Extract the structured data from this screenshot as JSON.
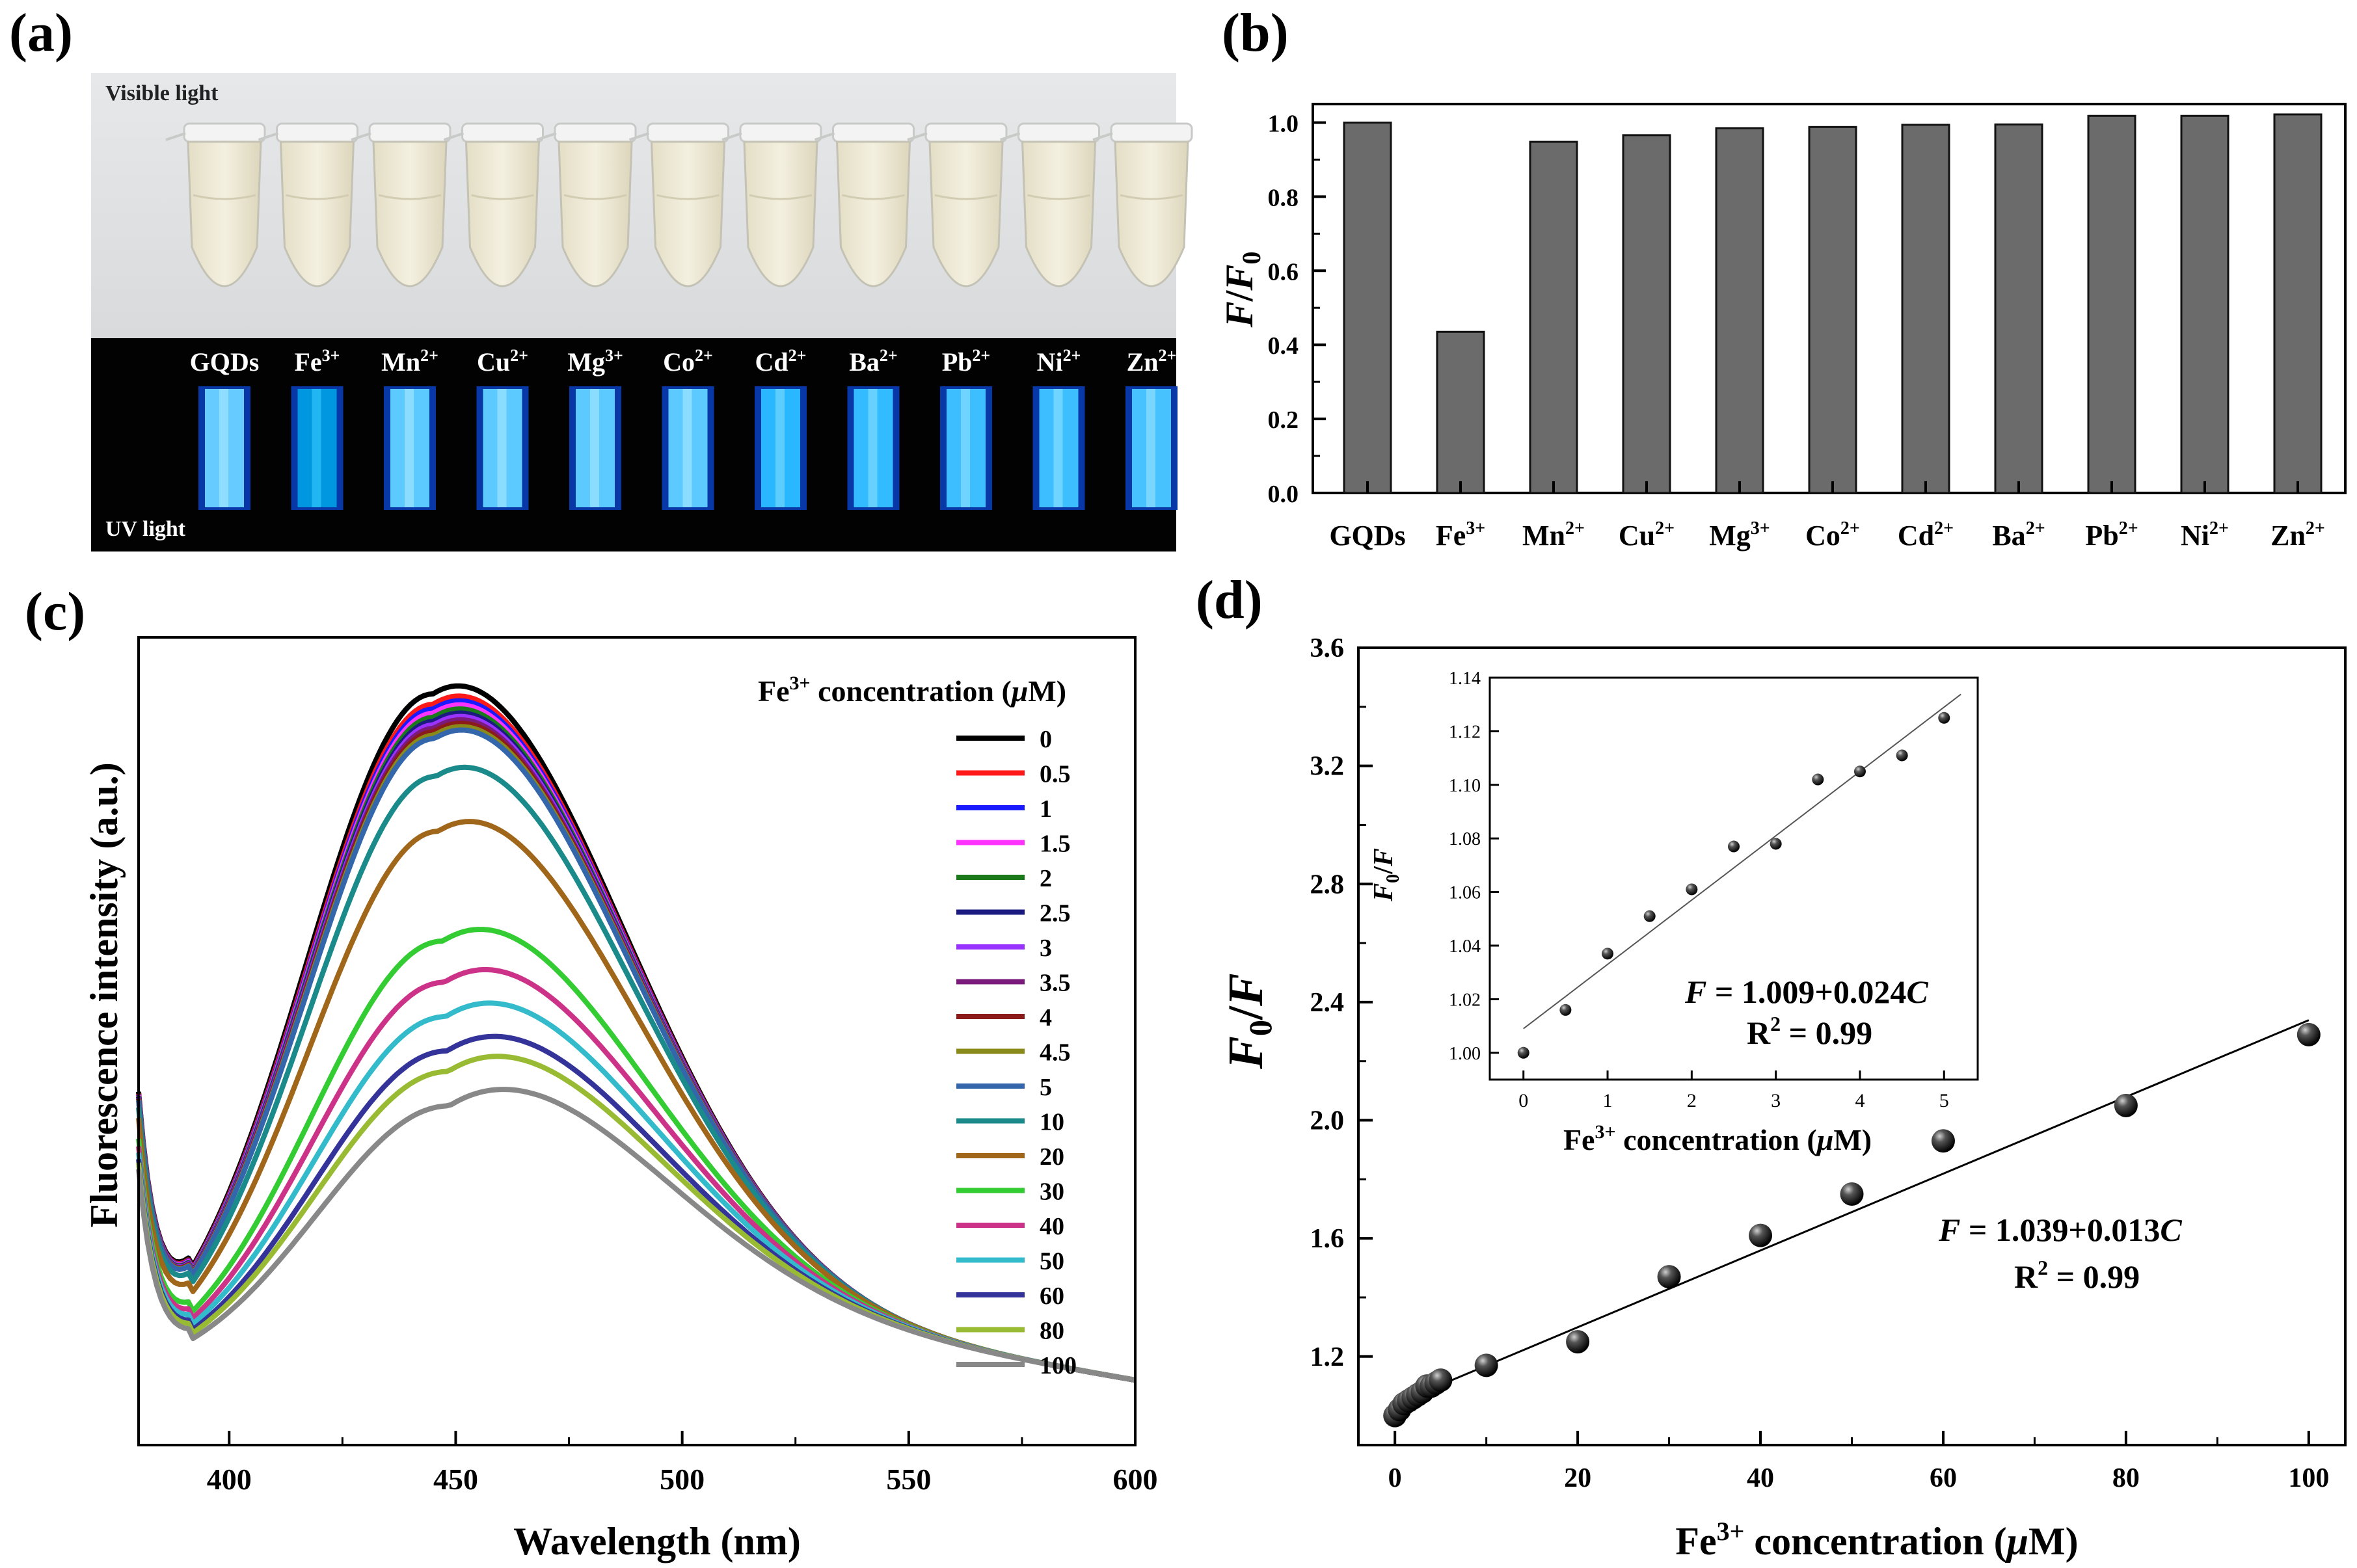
{
  "panel_labels": {
    "a": "(a)",
    "b": "(b)",
    "c": "(c)",
    "d": "(d)"
  },
  "photo": {
    "visible_label": "Visible light",
    "uv_label": "UV light",
    "tube_labels": [
      {
        "base": "GQDs",
        "sup": ""
      },
      {
        "base": "Fe",
        "sup": "3+"
      },
      {
        "base": "Mn",
        "sup": "2+"
      },
      {
        "base": "Cu",
        "sup": "2+"
      },
      {
        "base": "Mg",
        "sup": "3+"
      },
      {
        "base": "Co",
        "sup": "2+"
      },
      {
        "base": "Cd",
        "sup": "2+"
      },
      {
        "base": "Ba",
        "sup": "2+"
      },
      {
        "base": "Pb",
        "sup": "2+"
      },
      {
        "base": "Ni",
        "sup": "2+"
      },
      {
        "base": "Zn",
        "sup": "2+"
      }
    ],
    "uv_brightness": [
      1.0,
      0.35,
      0.95,
      0.95,
      0.95,
      0.95,
      0.7,
      0.75,
      0.8,
      0.8,
      0.85
    ]
  },
  "chart_data": [
    {
      "id": "b",
      "type": "bar",
      "ylabel": "F/F0",
      "ylabel_parts": {
        "main": "F",
        "sep": "/",
        "f": "F",
        "sub": "0"
      },
      "ylim": [
        0,
        1.05
      ],
      "yticks": [
        "0.0",
        "0.2",
        "0.4",
        "0.6",
        "0.8",
        "1.0"
      ],
      "ytick_values": [
        0,
        0.2,
        0.4,
        0.6,
        0.8,
        1.0
      ],
      "categories": [
        {
          "base": "GQDs",
          "sup": ""
        },
        {
          "base": "Fe",
          "sup": "3+"
        },
        {
          "base": "Mn",
          "sup": "2+"
        },
        {
          "base": "Cu",
          "sup": "2+"
        },
        {
          "base": "Mg",
          "sup": "3+"
        },
        {
          "base": "Co",
          "sup": "2+"
        },
        {
          "base": "Cd",
          "sup": "2+"
        },
        {
          "base": "Ba",
          "sup": "2+"
        },
        {
          "base": "Pb",
          "sup": "2+"
        },
        {
          "base": "Ni",
          "sup": "2+"
        },
        {
          "base": "Zn",
          "sup": "2+"
        }
      ],
      "values": [
        1.0,
        0.435,
        0.948,
        0.966,
        0.985,
        0.988,
        0.994,
        0.995,
        1.018,
        1.018,
        1.022
      ],
      "bar_color": "#6b6b6b"
    },
    {
      "id": "c",
      "type": "line",
      "xlabel": "Wavelength (nm)",
      "ylabel": "Fluorescence intensity (a.u.)",
      "xlim": [
        380,
        600
      ],
      "xticks": [
        400,
        450,
        500,
        550,
        600
      ],
      "legend_title": {
        "pre": "Fe",
        "sup": "3+",
        "post": " concentration (",
        "mu": "μ",
        "unit": "M)"
      },
      "legend_location": "top-right",
      "series": [
        {
          "name": "0",
          "color": "#000000",
          "peak": 1.0
        },
        {
          "name": "0.5",
          "color": "#ff1a1a",
          "peak": 0.985
        },
        {
          "name": "1",
          "color": "#1a1aff",
          "peak": 0.978
        },
        {
          "name": "1.5",
          "color": "#ff33ff",
          "peak": 0.972
        },
        {
          "name": "2",
          "color": "#1a7a1a",
          "peak": 0.966
        },
        {
          "name": "2.5",
          "color": "#1a1a80",
          "peak": 0.96
        },
        {
          "name": "3",
          "color": "#9933ff",
          "peak": 0.955
        },
        {
          "name": "3.5",
          "color": "#7a1a7a",
          "peak": 0.95
        },
        {
          "name": "4",
          "color": "#8b1a1a",
          "peak": 0.945
        },
        {
          "name": "4.5",
          "color": "#8a8a1a",
          "peak": 0.94
        },
        {
          "name": "5",
          "color": "#3366aa",
          "peak": 0.935
        },
        {
          "name": "10",
          "color": "#1a8a8a",
          "peak": 0.88
        },
        {
          "name": "20",
          "color": "#a0661a",
          "peak": 0.8
        },
        {
          "name": "30",
          "color": "#33cc33",
          "peak": 0.64
        },
        {
          "name": "40",
          "color": "#cc3388",
          "peak": 0.58
        },
        {
          "name": "50",
          "color": "#33bbcc",
          "peak": 0.53
        },
        {
          "name": "60",
          "color": "#333399",
          "peak": 0.48
        },
        {
          "name": "80",
          "color": "#99bb33",
          "peak": 0.45
        },
        {
          "name": "100",
          "color": "#888888",
          "peak": 0.4
        }
      ]
    },
    {
      "id": "d",
      "type": "scatter",
      "xlabel": {
        "pre": "Fe",
        "sup": "3+",
        "post": " concentration (",
        "mu": "μ",
        "unit": "M)"
      },
      "ylabel": "F0/F",
      "xlim": [
        -4,
        104
      ],
      "ylim": [
        0.9,
        3.6
      ],
      "xticks": [
        0,
        20,
        40,
        60,
        80,
        100
      ],
      "yticks": [
        "1.2",
        "1.6",
        "2.0",
        "2.4",
        "2.8",
        "3.2",
        "3.6"
      ],
      "ytick_values": [
        1.2,
        1.6,
        2.0,
        2.4,
        2.8,
        3.2,
        3.6
      ],
      "x": [
        0,
        0.5,
        1,
        1.5,
        2,
        2.5,
        3,
        3.5,
        4,
        4.5,
        5,
        10,
        20,
        30,
        40,
        50,
        60,
        80,
        100
      ],
      "y": [
        1.0,
        1.02,
        1.04,
        1.05,
        1.06,
        1.07,
        1.08,
        1.1,
        1.1,
        1.11,
        1.12,
        1.17,
        1.25,
        1.47,
        1.61,
        1.75,
        1.93,
        2.05,
        2.29
      ],
      "fit": {
        "intercept": 1.039,
        "slope": 0.013
      },
      "equation": {
        "f": "F",
        "rest": " = 1.039+0.013",
        "c": "C"
      },
      "r2": {
        "pre": "R",
        "sup": "2",
        "post": " = 0.99"
      },
      "inset": {
        "xlim": [
          -0.4,
          5.4
        ],
        "ylim": [
          0.99,
          1.14
        ],
        "xticks": [
          0,
          1,
          2,
          3,
          4,
          5
        ],
        "yticks": [
          "1.00",
          "1.02",
          "1.04",
          "1.06",
          "1.08",
          "1.10",
          "1.12",
          "1.14"
        ],
        "ytick_values": [
          1.0,
          1.02,
          1.04,
          1.06,
          1.08,
          1.1,
          1.12,
          1.14
        ],
        "x": [
          0,
          0.5,
          1,
          1.5,
          2,
          2.5,
          3,
          3.5,
          4,
          4.5,
          5
        ],
        "y": [
          1.0,
          1.016,
          1.037,
          1.051,
          1.061,
          1.077,
          1.078,
          1.102,
          1.105,
          1.111,
          1.125
        ],
        "fit": {
          "intercept": 1.009,
          "slope": 0.024
        },
        "xlabel": {
          "pre": "Fe",
          "sup": "3+",
          "post": " concentration (",
          "mu": "μ",
          "unit": "M)"
        },
        "ylabel": "F0/F",
        "equation": {
          "f": "F",
          "rest": " = 1.009+0.024",
          "c": "C"
        },
        "r2": {
          "pre": "R",
          "sup": "2",
          "post": " = 0.99"
        }
      }
    }
  ]
}
